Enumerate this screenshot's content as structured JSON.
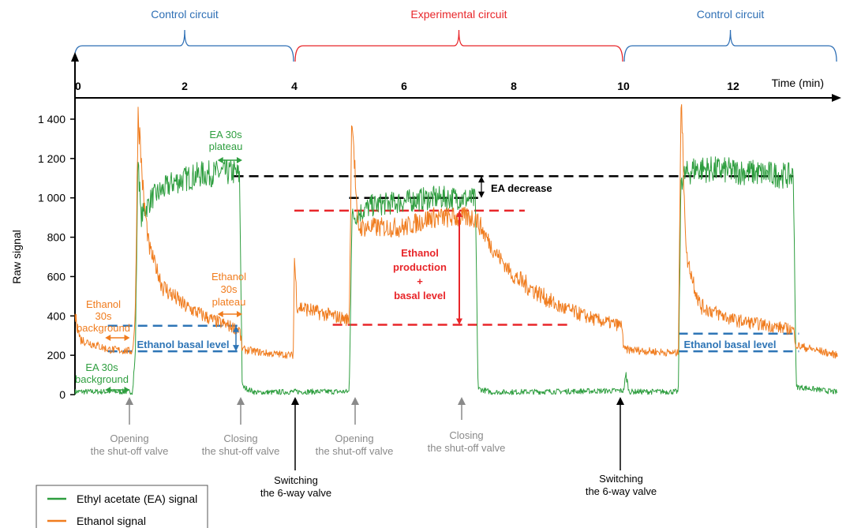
{
  "colors": {
    "ea": "#2e9e3f",
    "ethanol": "#f07c1e",
    "control": "#2e6fb5",
    "experimental": "#e8262a",
    "blue_dash": "#2e75b6",
    "red_dash": "#e8262a",
    "black": "#000000",
    "grey": "#8a8a8a"
  },
  "chart_data": {
    "type": "line",
    "title": "",
    "xlabel": "Time (min)",
    "ylabel": "Raw signal",
    "xlim": [
      0,
      13.9
    ],
    "ylim": [
      0,
      1400
    ],
    "x_ticks": [
      "0",
      "2",
      "4",
      "6",
      "8",
      "10",
      "12"
    ],
    "x_tick_positions": [
      0,
      2,
      4,
      6,
      8,
      10,
      12
    ],
    "y_ticks": [
      "0",
      "200",
      "400",
      "600",
      "800",
      "1 000",
      "1 200",
      "1 400"
    ],
    "y_tick_values": [
      0,
      200,
      400,
      600,
      800,
      1000,
      1200,
      1400
    ],
    "circuits": [
      {
        "label": "Control circuit",
        "start": 0,
        "end": 4,
        "kind": "control"
      },
      {
        "label": "Experimental circuit",
        "start": 4,
        "end": 10,
        "kind": "experimental"
      },
      {
        "label": "Control circuit",
        "start": 10,
        "end": 13.9,
        "kind": "control"
      }
    ],
    "series": [
      {
        "name": "Ethyl acetate (EA) signal",
        "color_key": "ea",
        "points": [
          [
            0,
            15
          ],
          [
            1.05,
            15
          ],
          [
            1.1,
            200
          ],
          [
            1.15,
            1250
          ],
          [
            1.2,
            900
          ],
          [
            1.4,
            1000
          ],
          [
            1.8,
            1080
          ],
          [
            2.3,
            1120
          ],
          [
            2.9,
            1130
          ],
          [
            3.0,
            1110
          ],
          [
            3.05,
            40
          ],
          [
            3.3,
            10
          ],
          [
            4.0,
            15
          ],
          [
            5.0,
            15
          ],
          [
            5.05,
            900
          ],
          [
            5.4,
            960
          ],
          [
            6.5,
            1000
          ],
          [
            7.0,
            1000
          ],
          [
            7.3,
            990
          ],
          [
            7.35,
            30
          ],
          [
            7.6,
            12
          ],
          [
            10,
            20
          ],
          [
            10.05,
            100
          ],
          [
            10.1,
            15
          ],
          [
            11.0,
            15
          ],
          [
            11.05,
            1100
          ],
          [
            11.3,
            1150
          ],
          [
            12.3,
            1130
          ],
          [
            13.1,
            1110
          ],
          [
            13.15,
            40
          ],
          [
            13.9,
            12
          ]
        ]
      },
      {
        "name": "Ethanol signal",
        "color_key": "ethanol",
        "points": [
          [
            0,
            400
          ],
          [
            0.1,
            280
          ],
          [
            0.6,
            230
          ],
          [
            1.05,
            220
          ],
          [
            1.1,
            400
          ],
          [
            1.15,
            1450
          ],
          [
            1.25,
            1000
          ],
          [
            1.35,
            750
          ],
          [
            1.6,
            550
          ],
          [
            2.0,
            450
          ],
          [
            2.5,
            380
          ],
          [
            3.0,
            330
          ],
          [
            3.05,
            230
          ],
          [
            3.5,
            210
          ],
          [
            3.98,
            200
          ],
          [
            4.0,
            700
          ],
          [
            4.05,
            450
          ],
          [
            4.4,
            420
          ],
          [
            5.0,
            380
          ],
          [
            5.05,
            1470
          ],
          [
            5.15,
            850
          ],
          [
            6.0,
            850
          ],
          [
            6.5,
            900
          ],
          [
            7.3,
            900
          ],
          [
            7.6,
            750
          ],
          [
            8.0,
            600
          ],
          [
            8.8,
            450
          ],
          [
            9.5,
            380
          ],
          [
            9.98,
            350
          ],
          [
            10.0,
            230
          ],
          [
            10.5,
            220
          ],
          [
            11.0,
            210
          ],
          [
            11.05,
            1500
          ],
          [
            11.15,
            700
          ],
          [
            11.4,
            450
          ],
          [
            12.0,
            380
          ],
          [
            13.1,
            330
          ],
          [
            13.15,
            250
          ],
          [
            13.9,
            200
          ]
        ]
      }
    ],
    "reference_lines": [
      {
        "color_key": "black",
        "x": [
          2.9,
          13.1
        ],
        "y": 1110
      },
      {
        "color_key": "black",
        "x": [
          5.0,
          7.35
        ],
        "y": 1000
      },
      {
        "color_key": "red_dash",
        "x": [
          4.0,
          8.2
        ],
        "y": 935
      },
      {
        "color_key": "red_dash",
        "x": [
          4.7,
          9.0
        ],
        "y": 355
      },
      {
        "color_key": "blue_dash",
        "x": [
          0.6,
          3.05
        ],
        "y": 350
      },
      {
        "color_key": "blue_dash",
        "x": [
          0.6,
          3.05
        ],
        "y": 220
      },
      {
        "color_key": "blue_dash",
        "x": [
          11.0,
          13.2
        ],
        "y": 310
      },
      {
        "color_key": "blue_dash",
        "x": [
          11.0,
          13.2
        ],
        "y": 220
      }
    ],
    "legend": [
      {
        "label": "Ethyl acetate (EA) signal",
        "color_key": "ea"
      },
      {
        "label": "Ethanol signal",
        "color_key": "ethanol"
      }
    ]
  },
  "annotations": {
    "ea_plateau": [
      "EA 30s",
      "plateau"
    ],
    "ethanol_plateau": [
      "Ethanol",
      "30s",
      "plateau"
    ],
    "ethanol_background": [
      "Ethanol",
      "30s",
      "background"
    ],
    "ea_background": [
      "EA 30s",
      "background"
    ],
    "ethanol_basal_level": "Ethanol basal level",
    "ethanol_basal_level_2": "Ethanol basal level",
    "ea_decrease": "EA decrease",
    "ethanol_production": [
      "Ethanol",
      "production",
      "+",
      "basal level"
    ],
    "opening_1": [
      "Opening",
      "the shut-off valve"
    ],
    "closing_1": [
      "Closing",
      "the shut-off valve"
    ],
    "switching_1": [
      "Switching",
      "the 6-way valve"
    ],
    "opening_2": [
      "Opening",
      "the shut-off valve"
    ],
    "closing_2": [
      "Closing",
      "the shut-off valve"
    ],
    "switching_2": [
      "Switching",
      "the 6-way valve"
    ]
  }
}
